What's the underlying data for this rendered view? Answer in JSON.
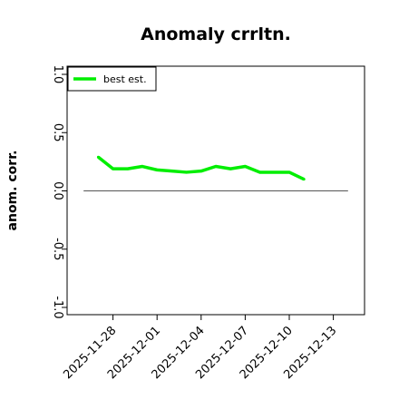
{
  "chart_data": {
    "type": "line",
    "title": "Anomaly crrltn.",
    "xlabel": "",
    "ylabel": "anom. corr.",
    "ylim": [
      -1.0,
      1.0
    ],
    "yticks": [
      -1.0,
      -0.5,
      0.0,
      0.5,
      1.0
    ],
    "ytick_labels": [
      "-1.0",
      "-0.5",
      "0.0",
      "0.5",
      "1.0"
    ],
    "xlim": [
      "2025-11-25",
      "2025-12-15"
    ],
    "xticks": [
      "2025-11-28",
      "2025-12-01",
      "2025-12-04",
      "2025-12-07",
      "2025-12-10",
      "2025-12-13"
    ],
    "xtick_labels": [
      "2025-11-28",
      "2025-12-01",
      "2025-12-04",
      "2025-12-07",
      "2025-12-10",
      "2025-12-13"
    ],
    "zero_line": {
      "from": "2025-11-26",
      "to": "2025-12-14",
      "y": 0.0,
      "color": "#555555"
    },
    "grid": false,
    "legend_position": "top-left",
    "series": [
      {
        "name": "best est.",
        "color": "#00ee00",
        "x": [
          "2025-11-27",
          "2025-11-28",
          "2025-11-29",
          "2025-11-30",
          "2025-12-01",
          "2025-12-02",
          "2025-12-03",
          "2025-12-04",
          "2025-12-05",
          "2025-12-06",
          "2025-12-07",
          "2025-12-08",
          "2025-12-09",
          "2025-12-10",
          "2025-12-11"
        ],
        "values": [
          0.29,
          0.19,
          0.19,
          0.21,
          0.18,
          0.17,
          0.16,
          0.17,
          0.21,
          0.19,
          0.21,
          0.16,
          0.16,
          0.16,
          0.1
        ]
      }
    ]
  }
}
